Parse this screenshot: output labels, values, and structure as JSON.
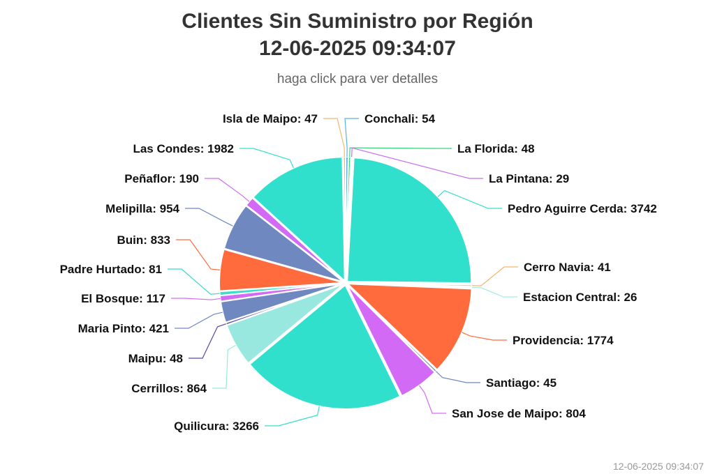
{
  "header": {
    "title_line1": "Clientes Sin Suministro por Región",
    "title_line2": "12-06-2025 09:34:07",
    "subtitle": "haga click para ver detalles"
  },
  "footer": {
    "timestamp": "12-06-2025 09:34:07"
  },
  "chart_data": {
    "type": "pie",
    "title": "Clientes Sin Suministro por Región 12-06-2025 09:34:07",
    "subtitle": "haga click para ver detalles",
    "data_labels_format": "{name}: {value}",
    "slices": [
      {
        "name": "Conchali",
        "value": 54,
        "color": "#5ab3e0"
      },
      {
        "name": "La Florida",
        "value": 48,
        "color": "#3ad27e"
      },
      {
        "name": "La Pintana",
        "value": 29,
        "color": "#c86df2"
      },
      {
        "name": "Pedro Aguirre Cerda",
        "value": 3742,
        "color": "#30e0cc"
      },
      {
        "name": "Cerro Navia",
        "value": 41,
        "color": "#f5b66a"
      },
      {
        "name": "Estacion Central",
        "value": 26,
        "color": "#a5ebe5"
      },
      {
        "name": "Providencia",
        "value": 1774,
        "color": "#ff6b3d"
      },
      {
        "name": "Santiago",
        "value": 45,
        "color": "#7086bb"
      },
      {
        "name": "San Jose de Maipo",
        "value": 804,
        "color": "#d36af5"
      },
      {
        "name": "Quilicura",
        "value": 3266,
        "color": "#30e0cc"
      },
      {
        "name": "Cerrillos",
        "value": 864,
        "color": "#98e8e0"
      },
      {
        "name": "Maipu",
        "value": 48,
        "color": "#5647b0"
      },
      {
        "name": "Maria Pinto",
        "value": 421,
        "color": "#6f88c0"
      },
      {
        "name": "El Bosque",
        "value": 117,
        "color": "#d36af5"
      },
      {
        "name": "Padre Hurtado",
        "value": 81,
        "color": "#3bdcc8"
      },
      {
        "name": "Buin",
        "value": 833,
        "color": "#ff6b3d"
      },
      {
        "name": "Melipilla",
        "value": 954,
        "color": "#6f88c0"
      },
      {
        "name": "Peñaflor",
        "value": 190,
        "color": "#d36af5"
      },
      {
        "name": "Las Condes",
        "value": 1982,
        "color": "#30e0cc"
      },
      {
        "name": "Isla de Maipo",
        "value": 47,
        "color": "#f5b66a"
      }
    ]
  }
}
